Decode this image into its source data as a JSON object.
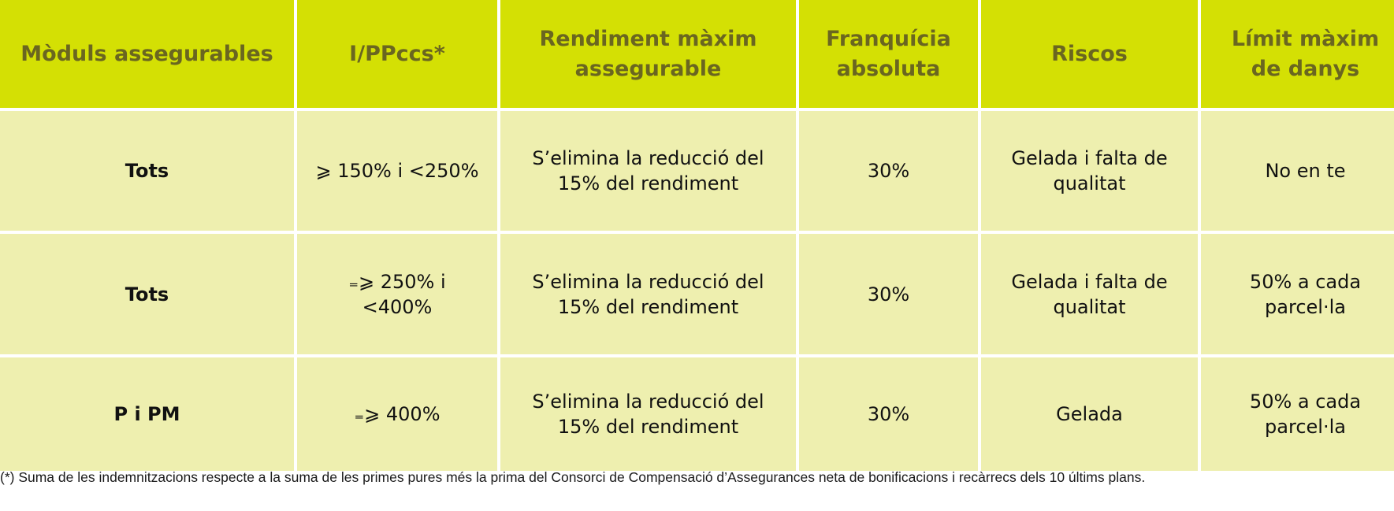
{
  "colors": {
    "header_bg": "#d4e004",
    "header_text": "#6a6620",
    "row_bg": "#eeefaf",
    "row_text": "#111111",
    "gridlines": "#ffffff"
  },
  "table": {
    "headers": [
      "Mòduls assegurables",
      "I/PPccs*",
      "Rendiment màxim\nassegurable",
      "Franquícia\nabsoluta",
      "Riscos",
      "Límit màxim\nde danys"
    ],
    "rows": [
      [
        "Tots",
        "⩾ 150% i <250%",
        "S’elimina la reducció del\n15% del rendiment",
        "30%",
        "Gelada i falta de\nqualitat",
        "No en te"
      ],
      [
        "Tots",
        "₌⩾ 250% i\n<400%",
        "S’elimina la reducció del\n15% del rendiment",
        "30%",
        "Gelada i falta de\nqualitat",
        "50% a cada\nparcel·la"
      ],
      [
        "P i PM",
        "₌⩾ 400%",
        "S’elimina la reducció del\n15% del rendiment",
        "30%",
        "Gelada",
        "50% a cada\nparcel·la"
      ]
    ]
  },
  "footnote": "(*) Suma de les indemnitzacions respecte a la suma de les primes pures més la prima del Consorci de Compensació d’Assegurances neta de bonificacions i recàrrecs dels 10 últims plans."
}
